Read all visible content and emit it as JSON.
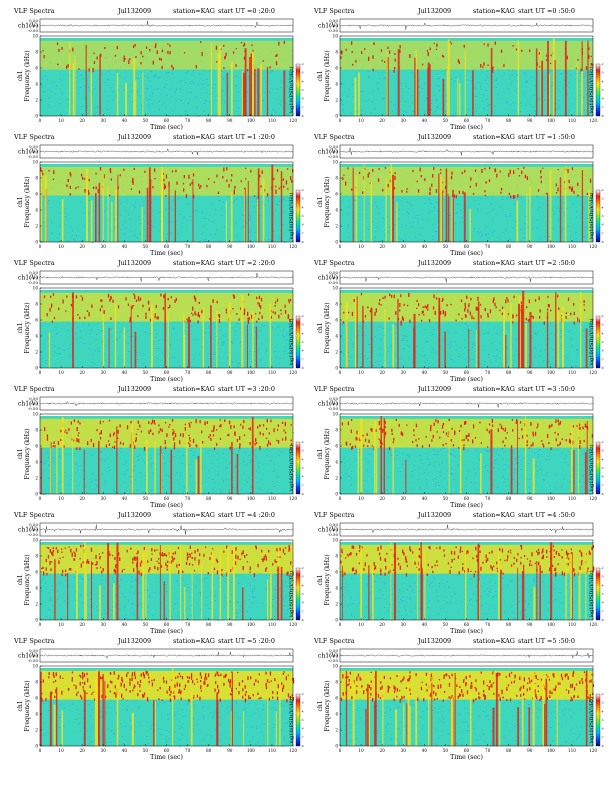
{
  "colors": {
    "spectrogram_background": "#3fd6c0",
    "low_noise": "#37a7ea",
    "mid_noise": "#2fe07a",
    "high_band": "#f4e21b",
    "spike": "#e2231a",
    "colorbar": [
      "#0b0b8c",
      "#0044ff",
      "#00b4ff",
      "#00e6a0",
      "#7fea2a",
      "#f7e61a",
      "#ff8a00",
      "#e2231a",
      "#ffffff"
    ]
  },
  "panels": [
    {
      "title": "VLF Spectra",
      "date": "Jul132009",
      "station": "station=KAG",
      "start": "start  UT =0 :20:0"
    },
    {
      "title": "VLF Spectra",
      "date": "Jul132009",
      "station": "station=KAG",
      "start": "start  UT =0 :50:0"
    },
    {
      "title": "VLF Spectra",
      "date": "Jul132009",
      "station": "station=KAG",
      "start": "start  UT =1 :20:0"
    },
    {
      "title": "VLF Spectra",
      "date": "Jul132009",
      "station": "station=KAG",
      "start": "start  UT =1 :50:0"
    },
    {
      "title": "VLF Spectra",
      "date": "Jul132009",
      "station": "station=KAG",
      "start": "start  UT =2 :20:0"
    },
    {
      "title": "VLF Spectra",
      "date": "Jul132009",
      "station": "station=KAG",
      "start": "start  UT =2 :50:0"
    },
    {
      "title": "VLF Spectra",
      "date": "Jul132009",
      "station": "station=KAG",
      "start": "start  UT =3 :20:0"
    },
    {
      "title": "VLF Spectra",
      "date": "Jul132009",
      "station": "station=KAG",
      "start": "start  UT =3 :50:0"
    },
    {
      "title": "VLF Spectra",
      "date": "Jul132009",
      "station": "station=KAG",
      "start": "start  UT =4 :20:0"
    },
    {
      "title": "VLF Spectra",
      "date": "Jul132009",
      "station": "station=KAG",
      "start": "start  UT =4 :50:0"
    },
    {
      "title": "VLF Spectra",
      "date": "Jul132009",
      "station": "station=KAG",
      "start": "start  UT =5 :20:0"
    },
    {
      "title": "VLF Spectra",
      "date": "Jul132009",
      "station": "station=KAG",
      "start": "start  UT =5 :50:0"
    }
  ],
  "chart_data": {
    "type": "heatmap",
    "xlabel": "Time  (sec)",
    "ylabel": "Frequency  (kHz)",
    "ylabel_prefix": "ch1",
    "waveform_ylabel": "ch1(V)",
    "colorbar_label": "log10(PSD)(V²/Hz)",
    "x_range": [
      0,
      120
    ],
    "x_ticks": [
      "0",
      "10",
      "20",
      "30",
      "40",
      "50",
      "60",
      "70",
      "80",
      "90",
      "100",
      "110",
      "120"
    ],
    "y_range": [
      0,
      10
    ],
    "y_ticks": [
      "0",
      "2",
      "4",
      "6",
      "8",
      "10"
    ],
    "waveform_ticks": [
      "0.50",
      "0.00",
      "-0.50"
    ],
    "colorbar_ticks": [
      "-2",
      "-3",
      "-4",
      "-5",
      "-6",
      "-7",
      "-8"
    ]
  }
}
